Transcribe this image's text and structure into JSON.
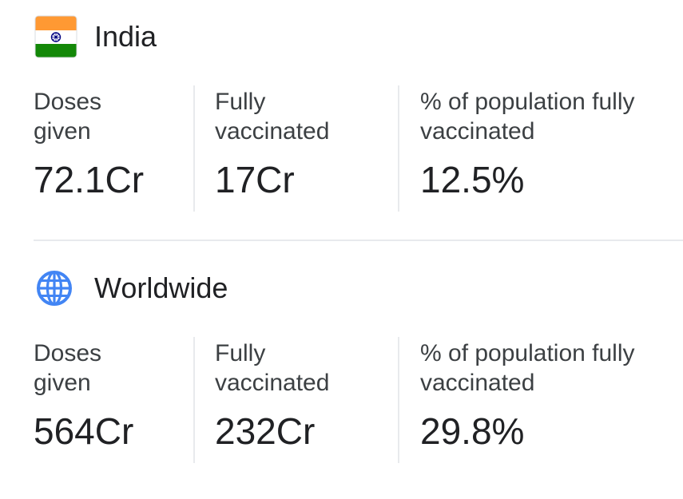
{
  "india": {
    "title": "India",
    "icon": "india-flag-icon",
    "stats": [
      {
        "label": "Doses given",
        "value": "72.1Cr"
      },
      {
        "label": "Fully vaccinated",
        "value": "17Cr"
      },
      {
        "label": "% of population fully vaccinated",
        "value": "12.5%"
      }
    ]
  },
  "worldwide": {
    "title": "Worldwide",
    "icon": "globe-icon",
    "stats": [
      {
        "label": "Doses given",
        "value": "564Cr"
      },
      {
        "label": "Fully vaccinated",
        "value": "232Cr"
      },
      {
        "label": "% of population fully vaccinated",
        "value": "29.8%"
      }
    ]
  },
  "colors": {
    "text_primary": "#202124",
    "text_secondary": "#3c4043",
    "divider": "#e8eaed",
    "flag_saffron": "#FF9933",
    "flag_green": "#138808",
    "flag_chakra": "#000080",
    "globe_blue": "#4285F4"
  }
}
